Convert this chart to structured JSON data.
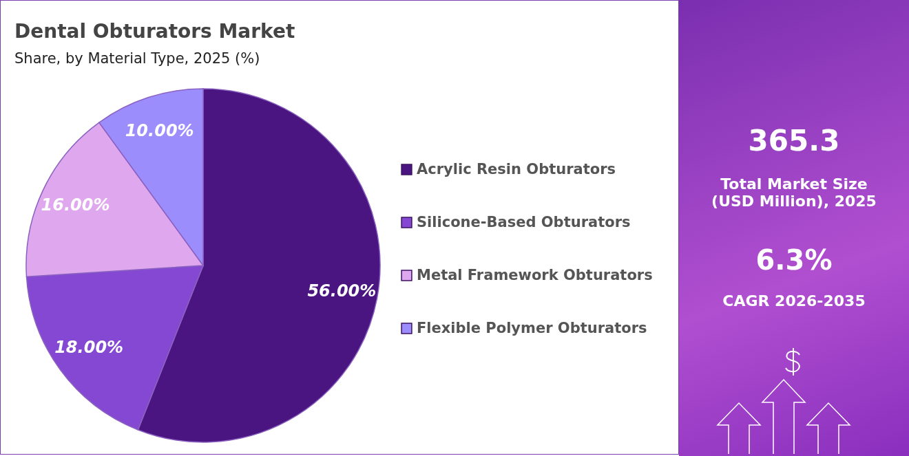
{
  "chart_data": {
    "type": "pie",
    "title": "Dental Obturators Market",
    "subtitle": "Share, by Material Type, 2025 (%)",
    "categories": [
      "Acrylic Resin Obturators",
      "Silicone-Based Obturators",
      "Metal Framework Obturators",
      "Flexible Polymer Obturators"
    ],
    "values": [
      56,
      18,
      16,
      10
    ],
    "colors": [
      "#4a1580",
      "#8548d2",
      "#dfa8ee",
      "#9c8dfd"
    ],
    "value_labels": [
      "56.00%",
      "18.00%",
      "16.00%",
      "10.00%"
    ],
    "legend": "right",
    "annotations": [
      "365.3",
      "Total Market Size (USD Million), 2025",
      "6.3%",
      "CAGR 2026-2035"
    ]
  }
}
